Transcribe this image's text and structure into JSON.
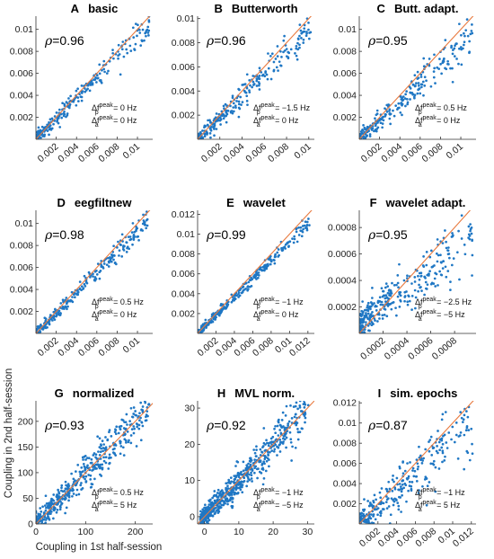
{
  "figure": {
    "xlabel": "Coupling in 1st half-session",
    "ylabel": "Coupling in 2nd half-session"
  },
  "chart_data": [
    {
      "id": "A",
      "letter": "A",
      "title": "basic",
      "type": "scatter",
      "rho_label": "ρ",
      "rho_value": "=0.96",
      "rho": 0.96,
      "ann_p": "= 0 Hz",
      "ann_a": "= 0 Hz",
      "xlim": [
        0,
        0.0115
      ],
      "ylim": [
        0,
        0.0112
      ],
      "xticks": [
        0.002,
        0.004,
        0.006,
        0.008,
        0.01
      ],
      "xticklabels": [
        "0.002",
        "0.004",
        "0.006",
        "0.008",
        "0.01"
      ],
      "yticks": [
        0.002,
        0.004,
        0.006,
        0.008,
        0.01
      ],
      "yticklabels": [
        "0.002",
        "0.004",
        "0.006",
        "0.008",
        "0.01"
      ],
      "n_points": 260,
      "slope": 0.95,
      "noise": 0.06,
      "tilt": true
    },
    {
      "id": "B",
      "letter": "B",
      "title": "Butterworth",
      "type": "scatter",
      "rho_label": "ρ",
      "rho_value": "=0.96",
      "rho": 0.96,
      "ann_p": "= −1.5 Hz",
      "ann_a": "= 0 Hz",
      "xlim": [
        0,
        0.0105
      ],
      "ylim": [
        0,
        0.0102
      ],
      "xticks": [
        0.002,
        0.004,
        0.006,
        0.008,
        0.01
      ],
      "xticklabels": [
        "0.002",
        "0.004",
        "0.006",
        "0.008",
        "0.01"
      ],
      "yticks": [
        0.002,
        0.004,
        0.006,
        0.008,
        0.01
      ],
      "yticklabels": [
        "0.002",
        "0.004",
        "0.006",
        "0.008",
        "0.01"
      ],
      "n_points": 260,
      "slope": 0.9,
      "noise": 0.08,
      "tilt": true
    },
    {
      "id": "C",
      "letter": "C",
      "title": "Butt. adapt.",
      "type": "scatter",
      "rho_label": "ρ",
      "rho_value": "=0.95",
      "rho": 0.95,
      "ann_p": "= 0.5 Hz",
      "ann_a": "= 0 Hz",
      "xlim": [
        0,
        0.0115
      ],
      "ylim": [
        0,
        0.0112
      ],
      "xticks": [
        0.002,
        0.004,
        0.006,
        0.008,
        0.01
      ],
      "xticklabels": [
        "0.002",
        "0.004",
        "0.006",
        "0.008",
        "0.01"
      ],
      "yticks": [
        0.002,
        0.004,
        0.006,
        0.008,
        0.01
      ],
      "yticklabels": [
        "0.002",
        "0.004",
        "0.006",
        "0.008",
        "0.01"
      ],
      "n_points": 260,
      "slope": 0.85,
      "noise": 0.09,
      "tilt": true
    },
    {
      "id": "D",
      "letter": "D",
      "title": "eegfiltnew",
      "type": "scatter",
      "rho_label": "ρ",
      "rho_value": "=0.98",
      "rho": 0.98,
      "ann_p": "= 0.5 Hz",
      "ann_a": "= 0 Hz",
      "xlim": [
        0,
        0.0115
      ],
      "ylim": [
        0,
        0.0112
      ],
      "xticks": [
        0.002,
        0.004,
        0.006,
        0.008,
        0.01
      ],
      "xticklabels": [
        "0.002",
        "0.004",
        "0.006",
        "0.008",
        "0.01"
      ],
      "yticks": [
        0.002,
        0.004,
        0.006,
        0.008,
        0.01
      ],
      "yticklabels": [
        "0.002",
        "0.004",
        "0.006",
        "0.008",
        "0.01"
      ],
      "n_points": 280,
      "slope": 0.92,
      "noise": 0.05,
      "tilt": true
    },
    {
      "id": "E",
      "letter": "E",
      "title": "wavelet",
      "type": "scatter",
      "rho_label": "ρ",
      "rho_value": "=0.99",
      "rho": 0.99,
      "ann_p": "= −1 Hz",
      "ann_a": "= 0 Hz",
      "xlim": [
        0,
        0.0127
      ],
      "ylim": [
        0,
        0.0124
      ],
      "xticks": [
        0.002,
        0.004,
        0.006,
        0.008,
        0.01,
        0.012
      ],
      "xticklabels": [
        "0.002",
        "0.004",
        "0.006",
        "0.008",
        "0.01",
        "0.012"
      ],
      "yticks": [
        0.002,
        0.004,
        0.006,
        0.008,
        0.01,
        0.012
      ],
      "yticklabels": [
        "0.002",
        "0.004",
        "0.006",
        "0.008",
        "0.01",
        "0.012"
      ],
      "n_points": 320,
      "slope": 0.92,
      "noise": 0.035,
      "tilt": true
    },
    {
      "id": "F",
      "letter": "F",
      "title": "wavelet adapt.",
      "type": "scatter",
      "rho_label": "ρ",
      "rho_value": "=0.95",
      "rho": 0.95,
      "ann_p": "= −2.5 Hz",
      "ann_a": "= −5 Hz",
      "xlim": [
        0,
        0.00098
      ],
      "ylim": [
        0,
        0.00093
      ],
      "xticks": [
        0.0002,
        0.0004,
        0.0006,
        0.0008
      ],
      "xticklabels": [
        "0.0002",
        "0.0004",
        "0.0006",
        "0.0008"
      ],
      "yticks": [
        0.0002,
        0.0004,
        0.0006,
        0.0008
      ],
      "yticklabels": [
        "0.0002",
        "0.0004",
        "0.0006",
        "0.0008"
      ],
      "n_points": 330,
      "slope": 0.8,
      "noise": 0.12,
      "tilt": true
    },
    {
      "id": "G",
      "letter": "G",
      "title": "normalized",
      "type": "scatter",
      "rho_label": "ρ",
      "rho_value": "=0.93",
      "rho": 0.93,
      "ann_p": "= 0.5 Hz",
      "ann_a": "= 5 Hz",
      "xlim": [
        0,
        235
      ],
      "ylim": [
        0,
        240
      ],
      "xticks": [
        0,
        100,
        200
      ],
      "xticklabels": [
        "0",
        "100",
        "200"
      ],
      "yticks": [
        0,
        50,
        100,
        150,
        200
      ],
      "yticklabels": [
        "0",
        "50",
        "100",
        "150",
        "200"
      ],
      "n_points": 480,
      "slope": 1.0,
      "noise": 0.1,
      "tilt": false
    },
    {
      "id": "H",
      "letter": "H",
      "title": "MVL norm.",
      "type": "scatter",
      "rho_label": "ρ",
      "rho_value": "=0.92",
      "rho": 0.92,
      "ann_p": "= −1 Hz",
      "ann_a": "= −5 Hz",
      "xlim": [
        -2,
        32
      ],
      "ylim": [
        -2,
        32
      ],
      "xticks": [
        0,
        10,
        20,
        30
      ],
      "xticklabels": [
        "0",
        "10",
        "20",
        "30"
      ],
      "yticks": [
        0,
        10,
        20,
        30
      ],
      "yticklabels": [
        "0",
        "10",
        "20",
        "30"
      ],
      "n_points": 650,
      "slope": 1.0,
      "noise": 0.1,
      "tilt": false
    },
    {
      "id": "I",
      "letter": "I",
      "title": "sim. epochs",
      "type": "scatter",
      "rho_label": "ρ",
      "rho_value": "=0.87",
      "rho": 0.87,
      "ann_p": "= −1 Hz",
      "ann_a": "= 5 Hz",
      "xlim": [
        0,
        0.0125
      ],
      "ylim": [
        0,
        0.0122
      ],
      "xticks": [
        0.002,
        0.004,
        0.006,
        0.008,
        0.01,
        0.012
      ],
      "xticklabels": [
        "0.002",
        "0.004",
        "0.006",
        "0.008",
        "0.01",
        "0.012"
      ],
      "yticks": [
        0.002,
        0.004,
        0.006,
        0.008,
        0.01,
        0.012
      ],
      "yticklabels": [
        "0.002",
        "0.004",
        "0.006",
        "0.008",
        "0.01",
        "0.012"
      ],
      "n_points": 300,
      "slope": 0.85,
      "noise": 0.15,
      "tilt": true
    }
  ],
  "annotation_labels": {
    "delta_f": "Δf",
    "sup": "peak",
    "sub_p": "p",
    "sub_a": "a"
  },
  "colors": {
    "points": "#1f77c4",
    "identity_line": "#e87a3f",
    "axes": "#333333"
  }
}
